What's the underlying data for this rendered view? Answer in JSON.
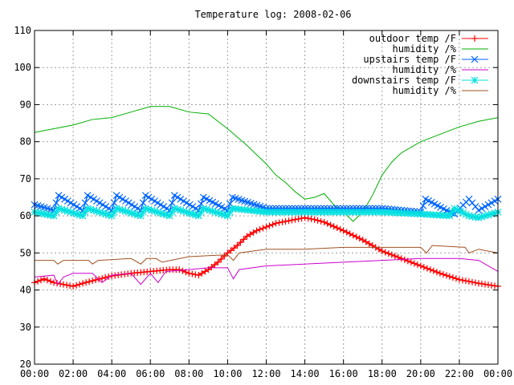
{
  "chart_data": {
    "type": "line",
    "title": "Temperature log: 2008-02-06",
    "xlabel": "",
    "ylabel": "",
    "xlim": [
      0,
      24
    ],
    "ylim": [
      20,
      110
    ],
    "grid": true,
    "legend_position": "top-right",
    "x_ticks": [
      "00:00",
      "02:00",
      "04:00",
      "06:00",
      "08:00",
      "10:00",
      "12:00",
      "14:00",
      "16:00",
      "18:00",
      "20:00",
      "22:00",
      "00:00"
    ],
    "y_ticks": [
      "20",
      "30",
      "40",
      "50",
      "60",
      "70",
      "80",
      "90",
      "100",
      "110"
    ],
    "series": [
      {
        "name": "outdoor temp /F",
        "color": "#ff0000",
        "marker": "plus",
        "x": [
          0,
          0.5,
          1,
          1.5,
          2,
          2.5,
          3,
          4,
          5,
          6,
          7,
          7.5,
          8,
          8.5,
          9,
          9.5,
          10,
          10.5,
          11,
          11.5,
          12,
          12.5,
          13,
          13.5,
          14,
          14.5,
          15,
          16,
          17,
          18,
          19,
          20,
          21,
          22,
          23,
          24
        ],
        "y": [
          42,
          43,
          42,
          41.5,
          41,
          41.8,
          42.5,
          43.8,
          44.5,
          45,
          45.5,
          45.5,
          44.5,
          44,
          45.5,
          47.5,
          50,
          52,
          54.5,
          56,
          57,
          58,
          58.5,
          59,
          59.5,
          59,
          58.3,
          56,
          53.5,
          50.5,
          48.5,
          46.5,
          44.5,
          42.8,
          41.8,
          41
        ]
      },
      {
        "name": "humidity /%",
        "color": "#00b000",
        "marker": "none",
        "x": [
          0,
          1,
          2,
          3,
          4,
          5,
          6,
          6.5,
          7,
          8,
          9,
          10,
          11,
          12,
          12.5,
          13,
          13.5,
          14,
          14.5,
          15,
          15.5,
          16,
          16.5,
          17,
          17.5,
          18,
          18.5,
          19,
          20,
          21,
          22,
          23,
          24
        ],
        "y": [
          82.5,
          83.5,
          84.5,
          86,
          86.5,
          88,
          89.5,
          89.5,
          89.5,
          88,
          87.5,
          83.5,
          79,
          74,
          71,
          69,
          66.5,
          64.5,
          65,
          66,
          63,
          61,
          58.5,
          61,
          65.5,
          71,
          74.5,
          77,
          80,
          82,
          84,
          85.5,
          86.5
        ]
      },
      {
        "name": "upstairs temp /F",
        "color": "#0066ff",
        "marker": "cross",
        "x": [
          0,
          1,
          1.25,
          2.5,
          2.75,
          4,
          4.25,
          5.5,
          5.75,
          7,
          7.25,
          8.5,
          8.75,
          10,
          10.25,
          12,
          14,
          16,
          18,
          19,
          20,
          20.25,
          21.5,
          21.75,
          22.5,
          23,
          24
        ],
        "y": [
          63,
          61.5,
          65.5,
          61.5,
          65.5,
          61.5,
          65.5,
          61.5,
          65.5,
          61.5,
          65.5,
          61.5,
          65,
          61.5,
          65,
          62,
          62,
          62,
          62,
          61.5,
          61,
          64.5,
          61,
          60.5,
          64.5,
          61.5,
          64.5
        ]
      },
      {
        "name": "humidity /%",
        "color": "#cc00cc",
        "marker": "none",
        "x": [
          0,
          1,
          1.2,
          1.5,
          2,
          3,
          3.5,
          4,
          5,
          5.5,
          6,
          6.4,
          6.8,
          8,
          9,
          10,
          10.3,
          10.6,
          12,
          14,
          16,
          18,
          20,
          22,
          23,
          24
        ],
        "y": [
          43.5,
          44,
          41.5,
          43.5,
          44.5,
          44.5,
          42,
          44,
          44.5,
          41.5,
          44.5,
          42,
          45,
          45.5,
          46,
          46,
          43,
          45.5,
          46.5,
          47,
          47.5,
          48,
          48.5,
          48.5,
          48,
          45
        ]
      },
      {
        "name": "downstairs temp /F",
        "color": "#00e0e0",
        "marker": "star",
        "x": [
          0,
          1,
          1.25,
          2.5,
          2.75,
          4,
          4.25,
          5.5,
          5.75,
          7,
          7.25,
          8.5,
          8.75,
          10,
          10.25,
          12,
          14,
          16,
          18,
          20,
          21.5,
          21.75,
          22.5,
          23,
          24
        ],
        "y": [
          61,
          60,
          62,
          60,
          62,
          60,
          62,
          60,
          62,
          60,
          62,
          60,
          62,
          60,
          62,
          61,
          61,
          61,
          61,
          60.5,
          60,
          62,
          60,
          59.5,
          61
        ]
      },
      {
        "name": "humidity /%",
        "color": "#a05020",
        "marker": "none",
        "x": [
          0,
          1,
          1.2,
          1.5,
          2.8,
          3,
          3.3,
          5,
          5.5,
          5.8,
          6.3,
          6.6,
          8,
          10,
          10.3,
          10.6,
          12,
          14,
          16,
          18,
          20,
          20.3,
          20.6,
          22.3,
          22.5,
          23,
          24
        ],
        "y": [
          48,
          48,
          47,
          48,
          48,
          47,
          48,
          48.5,
          47,
          48.5,
          48.5,
          47.5,
          49,
          49.5,
          48,
          50,
          51,
          51,
          51.5,
          51.5,
          51.5,
          50,
          52,
          51.5,
          50,
          51,
          50
        ]
      }
    ]
  }
}
